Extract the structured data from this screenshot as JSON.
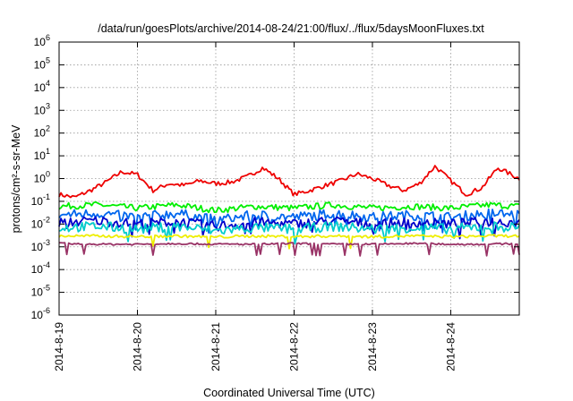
{
  "chart_data": {
    "type": "line",
    "title": "/data/run/goesPlots/archive/2014-08-24/21:00/flux/../flux/5daysMoonFluxes.txt",
    "xlabel": "Coordinated Universal Time (UTC)",
    "ylabel": "protons/cm²-s-sr-MeV",
    "yscale": "log",
    "ylim_exp": [
      -6,
      6
    ],
    "ytick_exponents": [
      -6,
      -5,
      -4,
      -3,
      -2,
      -1,
      0,
      1,
      2,
      3,
      4,
      5,
      6
    ],
    "ytick_base": "10",
    "x_range_days": [
      "2014-8-19",
      "2014-8-24 + 21h"
    ],
    "xtick_labels": [
      "2014-8-19",
      "2014-8-20",
      "2014-8-21",
      "2014-8-22",
      "2014-8-23",
      "2014-8-24"
    ],
    "grid": true,
    "series": [
      {
        "color": "#ee0000",
        "x": [
          0.0,
          0.2,
          0.4,
          0.6,
          0.8,
          1.0,
          1.2,
          1.4,
          1.6,
          1.8,
          2.0,
          2.2,
          2.4,
          2.6,
          2.8,
          3.0,
          3.2,
          3.4,
          3.6,
          3.8,
          4.0,
          4.2,
          4.4,
          4.6,
          4.8,
          5.0,
          5.2,
          5.4,
          5.6,
          5.875
        ],
        "y": [
          0.2,
          0.15,
          0.3,
          0.7,
          2.0,
          1.5,
          0.3,
          0.6,
          0.5,
          0.8,
          0.6,
          0.7,
          1.2,
          3.0,
          1.0,
          0.2,
          0.3,
          0.5,
          0.8,
          1.6,
          1.0,
          0.5,
          0.3,
          0.6,
          3.5,
          0.8,
          0.2,
          0.4,
          3.0,
          1.0
        ]
      },
      {
        "color": "#00ee00",
        "x": [
          0.0,
          0.5,
          1.0,
          1.5,
          2.0,
          2.5,
          3.0,
          3.5,
          4.0,
          4.5,
          5.0,
          5.5,
          5.875
        ],
        "y": [
          0.06,
          0.07,
          0.05,
          0.07,
          0.04,
          0.06,
          0.05,
          0.07,
          0.05,
          0.06,
          0.05,
          0.07,
          0.06
        ]
      },
      {
        "color": "#0066ee",
        "x": [
          0.0,
          0.5,
          1.0,
          1.5,
          2.0,
          2.5,
          3.0,
          3.5,
          4.0,
          4.5,
          5.0,
          5.5,
          5.875
        ],
        "y": [
          0.025,
          0.03,
          0.02,
          0.03,
          0.015,
          0.025,
          0.02,
          0.03,
          0.02,
          0.025,
          0.02,
          0.03,
          0.025
        ]
      },
      {
        "color": "#0000cc",
        "x": [
          0.0,
          0.5,
          1.0,
          1.5,
          2.0,
          2.5,
          3.0,
          3.5,
          4.0,
          4.5,
          5.0,
          5.5,
          5.875
        ],
        "y": [
          0.012,
          0.014,
          0.01,
          0.013,
          0.008,
          0.012,
          0.01,
          0.014,
          0.01,
          0.012,
          0.01,
          0.013,
          0.012
        ]
      },
      {
        "color": "#00cccc",
        "x": [
          0.0,
          0.5,
          1.0,
          1.5,
          2.0,
          2.5,
          3.0,
          3.5,
          4.0,
          4.5,
          5.0,
          5.5,
          5.875
        ],
        "y": [
          0.007,
          0.008,
          0.006,
          0.008,
          0.005,
          0.007,
          0.006,
          0.008,
          0.006,
          0.007,
          0.006,
          0.008,
          0.007
        ]
      },
      {
        "color": "#eeee00",
        "x": [
          0.0,
          0.5,
          1.0,
          1.5,
          2.0,
          2.5,
          3.0,
          3.5,
          4.0,
          4.5,
          5.0,
          5.5,
          5.875
        ],
        "y": [
          0.003,
          0.003,
          0.0028,
          0.003,
          0.0027,
          0.003,
          0.0028,
          0.003,
          0.0028,
          0.003,
          0.0028,
          0.003,
          0.003
        ]
      },
      {
        "color": "#993366",
        "x": [
          0.0,
          0.5,
          1.0,
          1.5,
          2.0,
          2.5,
          3.0,
          3.5,
          4.0,
          4.5,
          5.0,
          5.5,
          5.875
        ],
        "y": [
          0.0014,
          0.0013,
          0.0013,
          0.0014,
          0.0013,
          0.0013,
          0.0014,
          0.0013,
          0.0013,
          0.0014,
          0.0013,
          0.0013,
          0.0014
        ]
      }
    ]
  }
}
